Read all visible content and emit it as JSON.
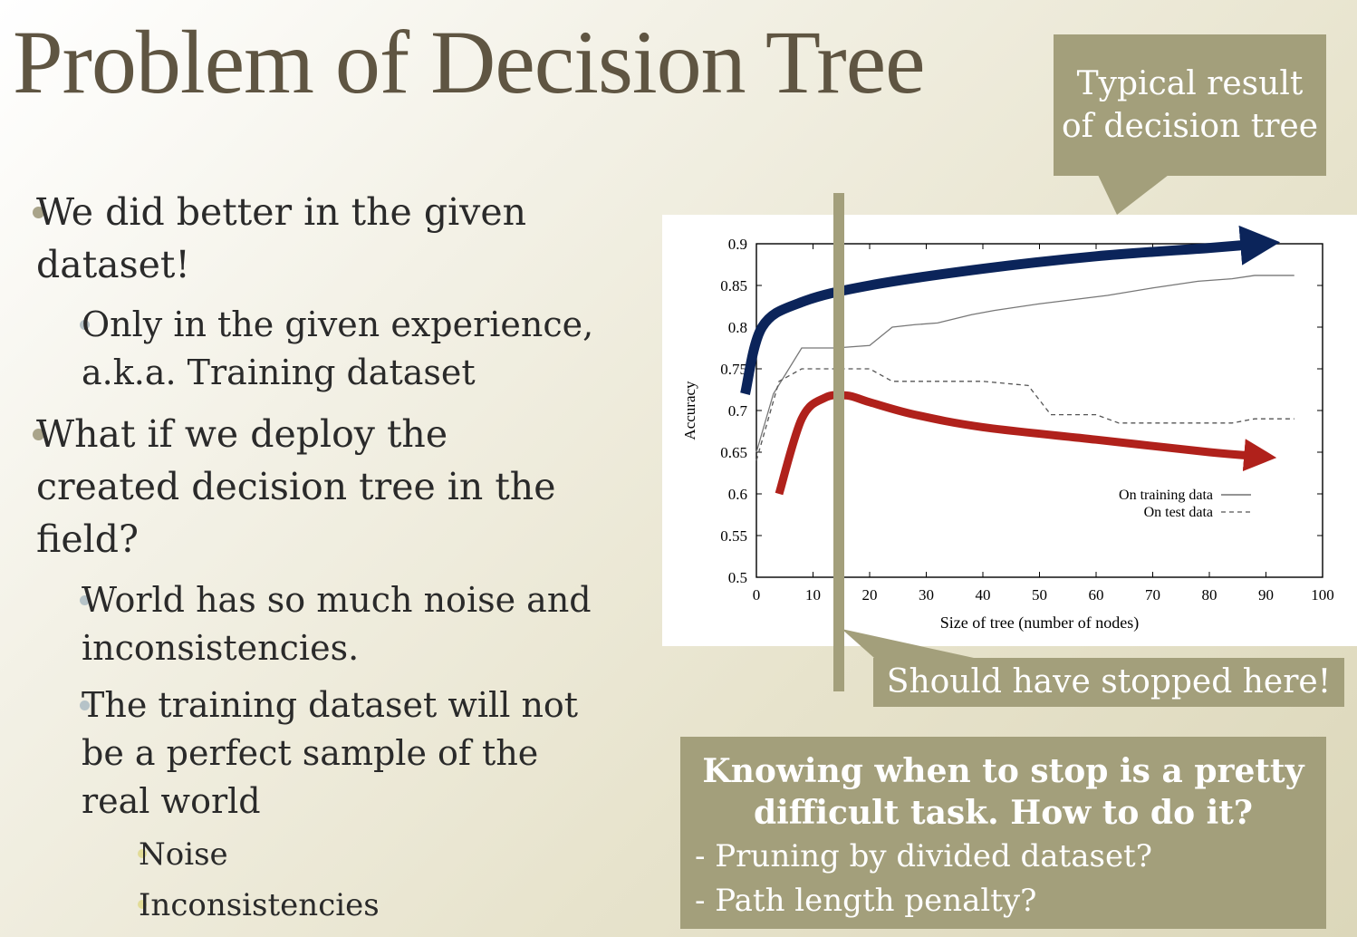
{
  "slide": {
    "title": "Problem of Decision Tree",
    "bullets": [
      {
        "level": 1,
        "lines": [
          "We did better in the given",
          "dataset!"
        ]
      },
      {
        "level": 2,
        "lines": [
          "Only in the given experience,",
          "a.k.a. Training dataset"
        ]
      },
      {
        "level": 1,
        "lines": [
          "What if we deploy the",
          "created decision tree in the",
          "field?"
        ]
      },
      {
        "level": 2,
        "lines": [
          "World has so much noise and",
          "inconsistencies."
        ]
      },
      {
        "level": 2,
        "lines": [
          "The training dataset will not",
          "be a perfect sample of the",
          "real world"
        ]
      },
      {
        "level": 3,
        "lines": [
          "Noise"
        ]
      },
      {
        "level": 3,
        "lines": [
          "Inconsistencies"
        ]
      }
    ],
    "callout_top": {
      "lines": [
        "Typical result",
        "of decision tree"
      ]
    },
    "callout_stop": "Should have stopped here!",
    "callout_bottom": {
      "heading_lines": [
        "Knowing when to stop is a pretty",
        "difficult task. How to do it?"
      ],
      "items": [
        "- Pruning by divided dataset?",
        "- Path length penalty?"
      ]
    },
    "colors": {
      "title": "#5f5542",
      "callout_bg": "#a39f7b",
      "marker_line": "#a39f7b",
      "arrow_training": "#0b245a",
      "arrow_test": "#b0211b"
    }
  },
  "chart_data": {
    "type": "line",
    "xlabel": "Size of tree (number of nodes)",
    "ylabel": "Accuracy",
    "xlim": [
      0,
      100
    ],
    "ylim": [
      0.5,
      0.9
    ],
    "xticks": [
      0,
      10,
      20,
      30,
      40,
      50,
      60,
      70,
      80,
      90,
      100
    ],
    "yticks": [
      0.5,
      0.55,
      0.6,
      0.65,
      0.7,
      0.75,
      0.8,
      0.85,
      0.9
    ],
    "series": [
      {
        "name": "On training data",
        "style": "solid",
        "x": [
          0,
          3,
          8,
          14,
          20,
          24,
          28,
          32,
          38,
          42,
          50,
          56,
          62,
          70,
          78,
          84,
          88,
          95
        ],
        "y": [
          0.65,
          0.72,
          0.775,
          0.775,
          0.778,
          0.8,
          0.803,
          0.805,
          0.815,
          0.82,
          0.828,
          0.833,
          0.838,
          0.847,
          0.855,
          0.858,
          0.862,
          0.862
        ]
      },
      {
        "name": "On test data",
        "style": "dashed",
        "x": [
          0,
          4,
          8,
          14,
          20,
          24,
          30,
          40,
          48,
          52,
          56,
          60,
          64,
          70,
          78,
          84,
          88,
          95
        ],
        "y": [
          0.64,
          0.735,
          0.75,
          0.75,
          0.75,
          0.735,
          0.735,
          0.735,
          0.73,
          0.695,
          0.695,
          0.695,
          0.685,
          0.685,
          0.685,
          0.685,
          0.69,
          0.69
        ]
      }
    ],
    "legend_position": "bottom-right",
    "marker_x": 15,
    "annotations": [
      {
        "arrow": "training",
        "x": [
          -2,
          1,
          8,
          20,
          40,
          60,
          80,
          89
        ],
        "y": [
          0.72,
          0.8,
          0.83,
          0.85,
          0.87,
          0.885,
          0.895,
          0.9
        ]
      },
      {
        "arrow": "test",
        "x": [
          4,
          8,
          12,
          16,
          20,
          28,
          40,
          60,
          80,
          89
        ],
        "y": [
          0.6,
          0.69,
          0.715,
          0.718,
          0.71,
          0.695,
          0.68,
          0.665,
          0.65,
          0.645
        ]
      }
    ]
  }
}
